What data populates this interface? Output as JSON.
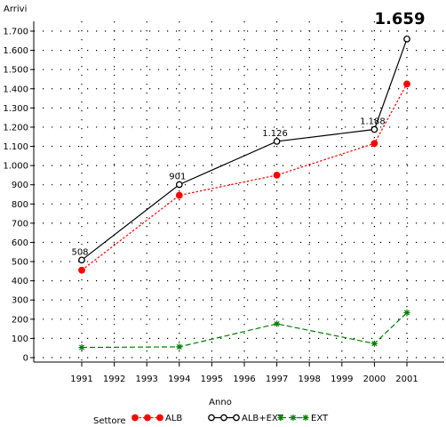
{
  "chart_data": {
    "type": "line",
    "title": "",
    "xlabel": "Anno",
    "ylabel": "Arrivi",
    "x_ticks": [
      1991,
      1992,
      1993,
      1994,
      1995,
      1996,
      1997,
      1998,
      1999,
      2000,
      2001
    ],
    "y_ticks": [
      0,
      100,
      200,
      300,
      400,
      500,
      600,
      700,
      800,
      900,
      1000,
      1100,
      1200,
      1300,
      1400,
      1500,
      1600,
      1700
    ],
    "y_tick_labels": [
      "0",
      "100",
      "200",
      "300",
      "400",
      "500",
      "600",
      "700",
      "800",
      "900",
      "1.000",
      "1.100",
      "1.200",
      "1.300",
      "1.400",
      "1.500",
      "1.600",
      "1.700"
    ],
    "xlim": [
      1991,
      2001
    ],
    "ylim": [
      0,
      1700
    ],
    "grid": "dotted",
    "legend": {
      "title": "Settore",
      "position": "bottom"
    },
    "x": [
      1991,
      1994,
      1997,
      2000,
      2001
    ],
    "series": [
      {
        "name": "ALB",
        "values": [
          455,
          845,
          950,
          1115,
          1425
        ],
        "color": "#ff0000",
        "marker": "filled-circle",
        "line": "dotted"
      },
      {
        "name": "ALB+EXT",
        "values": [
          508,
          901,
          1126,
          1188,
          1659
        ],
        "color": "#000000",
        "marker": "open-circle",
        "line": "solid",
        "labels": [
          "508",
          "901",
          "1.126",
          "1.188",
          "1.659"
        ]
      },
      {
        "name": "EXT",
        "values": [
          53,
          56,
          176,
          73,
          234
        ],
        "color": "#008000",
        "marker": "star",
        "line": "dashed"
      }
    ]
  }
}
